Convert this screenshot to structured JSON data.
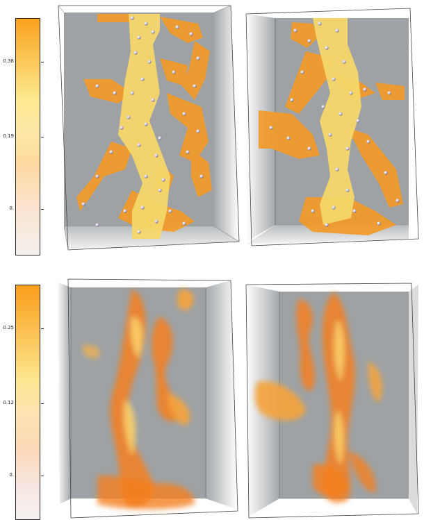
{
  "colorbar_top": {
    "ticks": [
      {
        "label": "0.38",
        "value": 0.38
      },
      {
        "label": "0.19",
        "value": 0.19
      },
      {
        "label": "0.",
        "value": 0.0
      }
    ]
  },
  "colorbar_bottom": {
    "ticks": [
      {
        "label": "0.25",
        "value": 0.25
      },
      {
        "label": "0.12",
        "value": 0.12
      },
      {
        "label": "0.",
        "value": 0.0
      }
    ]
  },
  "colors": {
    "box_background": "#9ea2a5",
    "structure_core": "#f6d76a",
    "structure_branch": "#f29b28",
    "particle": "#c9c3df",
    "density_hot": "#f47f1f"
  }
}
